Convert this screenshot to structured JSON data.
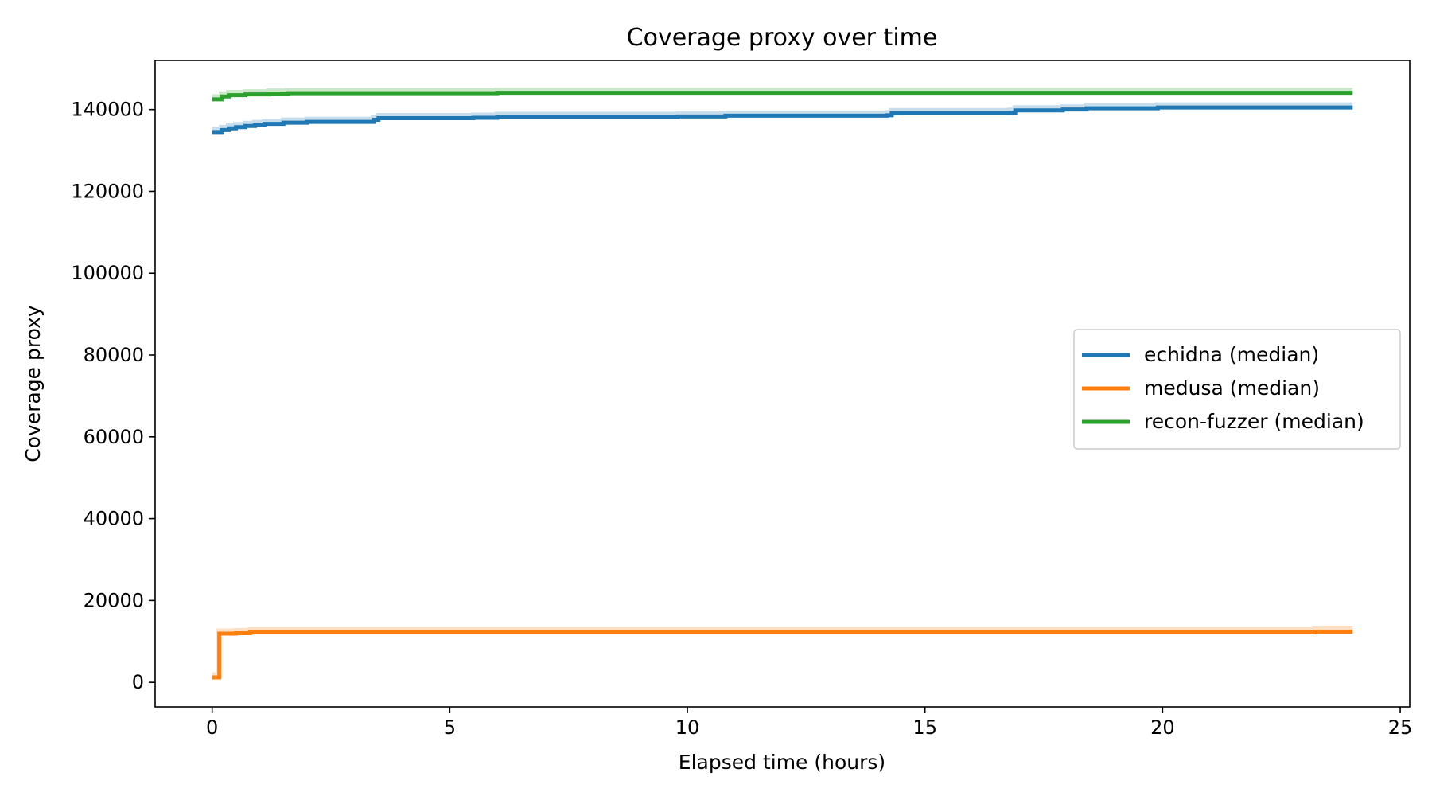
{
  "chart_data": {
    "type": "line",
    "title": "Coverage proxy over time",
    "xlabel": "Elapsed time (hours)",
    "ylabel": "Coverage proxy",
    "xlim": [
      -1.2,
      25.2
    ],
    "ylim": [
      -6000,
      152000
    ],
    "xticks": [
      0,
      5,
      10,
      15,
      20,
      25
    ],
    "yticks": [
      0,
      20000,
      40000,
      60000,
      80000,
      100000,
      120000,
      140000
    ],
    "grid": false,
    "legend_position": "center-right",
    "series": [
      {
        "name": "echidna (median)",
        "color": "#1f77b4",
        "step": true,
        "x": [
          0,
          0.2,
          0.35,
          0.5,
          0.7,
          0.9,
          1.1,
          1.5,
          2.0,
          3.4,
          3.5,
          5.5,
          6.0,
          9.8,
          10.8,
          14.2,
          14.3,
          16.8,
          16.9,
          17.9,
          18.4,
          19.9,
          24
        ],
        "y": [
          134500,
          135000,
          135400,
          135700,
          136000,
          136200,
          136500,
          136800,
          137000,
          137500,
          137900,
          138000,
          138200,
          138300,
          138500,
          138600,
          139100,
          139200,
          139800,
          140000,
          140300,
          140500,
          140500
        ]
      },
      {
        "name": "medusa (median)",
        "color": "#ff7f0e",
        "step": true,
        "x": [
          0,
          0.1,
          0.15,
          0.5,
          0.8,
          23.2,
          24
        ],
        "y": [
          1200,
          1200,
          11900,
          12000,
          12200,
          12400,
          12400
        ]
      },
      {
        "name": "recon-fuzzer (median)",
        "color": "#2ca02c",
        "step": true,
        "x": [
          0,
          0.2,
          0.35,
          0.7,
          1.2,
          1.6,
          6.0,
          24
        ],
        "y": [
          142500,
          143200,
          143500,
          143700,
          143900,
          144000,
          144100,
          144100
        ]
      }
    ]
  }
}
